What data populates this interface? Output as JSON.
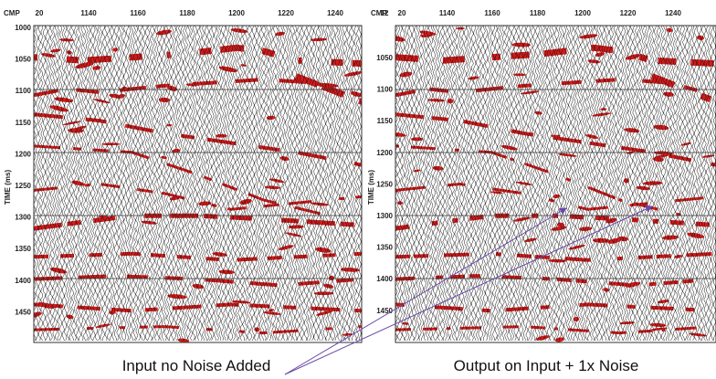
{
  "panels": [
    {
      "x_axis_label": "CMP",
      "x_ticks": [
        "20",
        "1140",
        "1160",
        "1180",
        "1200",
        "1220",
        "1240",
        "12"
      ],
      "y_axis_label": "TIME (ms)",
      "y_ticks": [
        "1000",
        "1050",
        "1100",
        "1150",
        "1200",
        "1250",
        "1300",
        "1350",
        "1400",
        "1450"
      ],
      "caption": "Input no Noise Added"
    },
    {
      "x_axis_label": "CMP",
      "x_ticks": [
        "20",
        "1140",
        "1160",
        "1180",
        "1200",
        "1220",
        "1240"
      ],
      "y_axis_label": "TIME (ms)",
      "y_ticks": [
        "1050",
        "1100",
        "1150",
        "1200",
        "1250",
        "1300",
        "1350",
        "1400",
        "1450"
      ],
      "caption": "Output on Input + 1x Noise"
    }
  ]
}
